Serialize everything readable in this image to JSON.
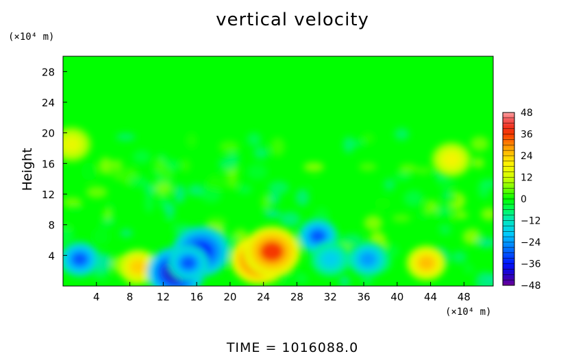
{
  "chart_data": {
    "type": "heatmap",
    "title": "vertical velocity",
    "ylabel": "Height",
    "x_unit": "(×10⁴ m)",
    "y_unit": "(×10⁴ m)",
    "footer": "TIME = 1016088.0",
    "x_ticks": [
      4,
      8,
      12,
      16,
      20,
      24,
      28,
      32,
      36,
      40,
      44,
      48
    ],
    "y_ticks": [
      4,
      8,
      12,
      16,
      20,
      24,
      28
    ],
    "xlim": [
      0,
      51.5
    ],
    "ylim": [
      0,
      30
    ],
    "colorbar": {
      "ticks": [
        48,
        36,
        24,
        12,
        0,
        -12,
        -24,
        -36,
        -48
      ],
      "range": [
        -48,
        48
      ]
    },
    "anomalies": [
      {
        "x": 2.0,
        "y": 3.5,
        "v": -30
      },
      {
        "x": 9.0,
        "y": 2.5,
        "v": 24
      },
      {
        "x": 13.5,
        "y": 1.8,
        "v": -42
      },
      {
        "x": 16.5,
        "y": 4.5,
        "v": -36
      },
      {
        "x": 15.0,
        "y": 3.0,
        "v": -30
      },
      {
        "x": 23.5,
        "y": 3.5,
        "v": 40
      },
      {
        "x": 25.0,
        "y": 4.5,
        "v": 36
      },
      {
        "x": 30.5,
        "y": 6.5,
        "v": -30
      },
      {
        "x": 32.0,
        "y": 3.5,
        "v": -18
      },
      {
        "x": 36.5,
        "y": 3.5,
        "v": -24
      },
      {
        "x": 43.5,
        "y": 3.0,
        "v": 26
      },
      {
        "x": 1.0,
        "y": 18.5,
        "v": 16
      },
      {
        "x": 46.5,
        "y": 16.5,
        "v": 18
      }
    ]
  }
}
